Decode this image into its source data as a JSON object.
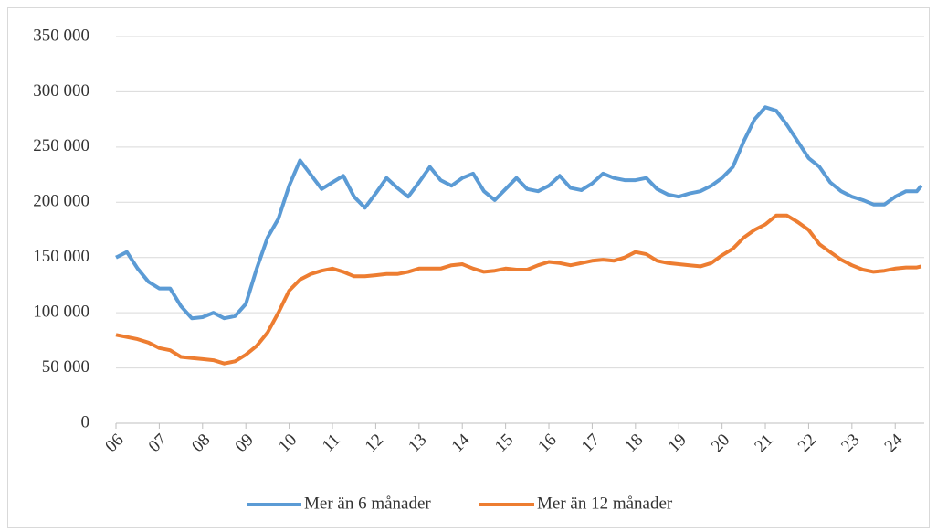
{
  "chart_data": {
    "type": "line",
    "x": [
      2006,
      2006.25,
      2006.5,
      2006.75,
      2007,
      2007.25,
      2007.5,
      2007.75,
      2008,
      2008.25,
      2008.5,
      2008.75,
      2009,
      2009.25,
      2009.5,
      2009.75,
      2010,
      2010.25,
      2010.5,
      2010.75,
      2011,
      2011.25,
      2011.5,
      2011.75,
      2012,
      2012.25,
      2012.5,
      2012.75,
      2013,
      2013.25,
      2013.5,
      2013.75,
      2014,
      2014.25,
      2014.5,
      2014.75,
      2015,
      2015.25,
      2015.5,
      2015.75,
      2016,
      2016.25,
      2016.5,
      2016.75,
      2017,
      2017.25,
      2017.5,
      2017.75,
      2018,
      2018.25,
      2018.5,
      2018.75,
      2019,
      2019.25,
      2019.5,
      2019.75,
      2020,
      2020.25,
      2020.5,
      2020.75,
      2021,
      2021.25,
      2021.5,
      2021.75,
      2022,
      2022.25,
      2022.5,
      2022.75,
      2023,
      2023.25,
      2023.5,
      2023.75,
      2024,
      2024.25,
      2024.5,
      2024.6
    ],
    "series": [
      {
        "name": "Mer än 6 månader",
        "color": "#5b9bd5",
        "values": [
          150000,
          155000,
          140000,
          128000,
          122000,
          122000,
          106000,
          95000,
          96000,
          100000,
          95000,
          97000,
          108000,
          140000,
          168000,
          185000,
          215000,
          238000,
          225000,
          212000,
          218000,
          224000,
          205000,
          195000,
          208000,
          222000,
          213000,
          205000,
          218000,
          232000,
          220000,
          215000,
          222000,
          226000,
          210000,
          202000,
          212000,
          222000,
          212000,
          210000,
          215000,
          224000,
          213000,
          211000,
          217000,
          226000,
          222000,
          220000,
          220000,
          222000,
          212000,
          207000,
          205000,
          208000,
          210000,
          215000,
          222000,
          232000,
          255000,
          275000,
          286000,
          283000,
          270000,
          255000,
          240000,
          232000,
          218000,
          210000,
          205000,
          202000,
          198000,
          198000,
          205000,
          210000,
          210000,
          215000
        ]
      },
      {
        "name": "Mer än 12 månader",
        "color": "#ed7d31",
        "values": [
          80000,
          78000,
          76000,
          73000,
          68000,
          66000,
          60000,
          59000,
          58000,
          57000,
          54000,
          56000,
          62000,
          70000,
          82000,
          100000,
          120000,
          130000,
          135000,
          138000,
          140000,
          137000,
          133000,
          133000,
          134000,
          135000,
          135000,
          137000,
          140000,
          140000,
          140000,
          143000,
          144000,
          140000,
          137000,
          138000,
          140000,
          139000,
          139000,
          143000,
          146000,
          145000,
          143000,
          145000,
          147000,
          148000,
          147000,
          150000,
          155000,
          153000,
          147000,
          145000,
          144000,
          143000,
          142000,
          145000,
          152000,
          158000,
          168000,
          175000,
          180000,
          188000,
          188000,
          182000,
          175000,
          162000,
          155000,
          148000,
          143000,
          139000,
          137000,
          138000,
          140000,
          141000,
          141000,
          142000
        ]
      }
    ],
    "xlim": [
      2006,
      2024.67
    ],
    "xticks": [
      {
        "value": 2006,
        "label": "06"
      },
      {
        "value": 2007,
        "label": "07"
      },
      {
        "value": 2008,
        "label": "08"
      },
      {
        "value": 2009,
        "label": "09"
      },
      {
        "value": 2010,
        "label": "10"
      },
      {
        "value": 2011,
        "label": "11"
      },
      {
        "value": 2012,
        "label": "12"
      },
      {
        "value": 2013,
        "label": "13"
      },
      {
        "value": 2014,
        "label": "14"
      },
      {
        "value": 2015,
        "label": "15"
      },
      {
        "value": 2016,
        "label": "16"
      },
      {
        "value": 2017,
        "label": "17"
      },
      {
        "value": 2018,
        "label": "18"
      },
      {
        "value": 2019,
        "label": "19"
      },
      {
        "value": 2020,
        "label": "20"
      },
      {
        "value": 2021,
        "label": "21"
      },
      {
        "value": 2022,
        "label": "22"
      },
      {
        "value": 2023,
        "label": "23"
      },
      {
        "value": 2024,
        "label": "24"
      }
    ],
    "ylim": [
      0,
      350000
    ],
    "yticks": [
      0,
      {
        "value": 50000,
        "label": "50 000"
      },
      {
        "value": 100000,
        "label": "100 000"
      },
      {
        "value": 150000,
        "label": "150 000"
      },
      {
        "value": 200000,
        "label": "200 000"
      },
      {
        "value": 250000,
        "label": "250 000"
      },
      {
        "value": 300000,
        "label": "300 000"
      },
      {
        "value": 350000,
        "label": "350 000"
      }
    ],
    "grid": true,
    "legend": "bottom"
  }
}
